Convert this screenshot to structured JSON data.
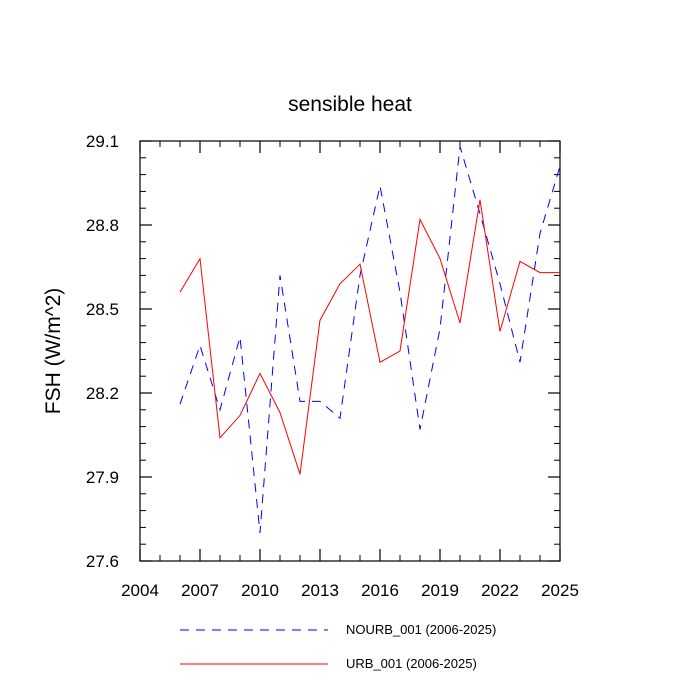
{
  "chart_data": {
    "type": "line",
    "title": "sensible heat",
    "xlabel": "",
    "ylabel": "FSH  (W/m^2)",
    "xlim": [
      2004,
      2025
    ],
    "ylim": [
      27.6,
      29.1
    ],
    "xticks": [
      2004,
      2007,
      2010,
      2013,
      2016,
      2019,
      2022,
      2025
    ],
    "xtick_labels": [
      "2004",
      "2007",
      "2010",
      "2013",
      "2016",
      "2019",
      "2022",
      "2025"
    ],
    "yticks": [
      27.6,
      27.9,
      28.2,
      28.5,
      28.8,
      29.1
    ],
    "ytick_labels": [
      "27.6",
      "27.9",
      "28.2",
      "28.5",
      "28.8",
      "29.1"
    ],
    "grid": false,
    "legend_position": "bottom",
    "series": [
      {
        "name": "NOURB_001 (2006-2025)",
        "color": "#0000ff",
        "dash": "dashed",
        "x": [
          2006,
          2007,
          2008,
          2009,
          2010,
          2011,
          2012,
          2013,
          2014,
          2015,
          2016,
          2017,
          2018,
          2019,
          2020,
          2021,
          2022,
          2023,
          2024,
          2025
        ],
        "values": [
          28.16,
          28.37,
          28.14,
          28.4,
          27.7,
          28.62,
          28.17,
          28.17,
          28.11,
          28.62,
          28.94,
          28.56,
          28.07,
          28.43,
          29.08,
          28.84,
          28.59,
          28.31,
          28.77,
          29.01
        ]
      },
      {
        "name": "URB_001 (2006-2025)",
        "color": "#ff0000",
        "dash": "solid",
        "x": [
          2006,
          2007,
          2008,
          2009,
          2010,
          2011,
          2012,
          2013,
          2014,
          2015,
          2016,
          2017,
          2018,
          2019,
          2020,
          2021,
          2022,
          2023,
          2024,
          2025
        ],
        "values": [
          28.56,
          28.68,
          28.04,
          28.12,
          28.27,
          28.13,
          27.91,
          28.46,
          28.59,
          28.66,
          28.31,
          28.35,
          28.82,
          28.68,
          28.45,
          28.89,
          28.42,
          28.67,
          28.63,
          28.63
        ]
      }
    ]
  }
}
